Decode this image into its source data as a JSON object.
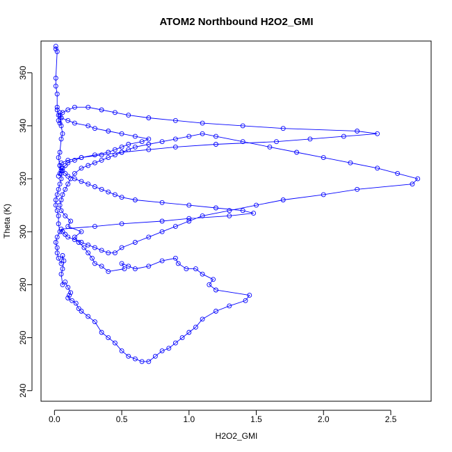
{
  "chart_data": {
    "type": "line",
    "title": "ATOM2 Northbound H2O2_GMI",
    "xlabel": "H2O2_GMI",
    "ylabel": "Theta (K)",
    "xlim": [
      -0.1,
      2.8
    ],
    "ylim": [
      236,
      372
    ],
    "xticks": [
      {
        "value": 0.0,
        "label": "0.0"
      },
      {
        "value": 0.5,
        "label": "0.5"
      },
      {
        "value": 1.0,
        "label": "1.0"
      },
      {
        "value": 1.5,
        "label": "1.5"
      },
      {
        "value": 2.0,
        "label": "2.0"
      },
      {
        "value": 2.5,
        "label": "2.5"
      }
    ],
    "yticks": [
      {
        "value": 240,
        "label": "240"
      },
      {
        "value": 260,
        "label": "260"
      },
      {
        "value": 280,
        "label": "280"
      },
      {
        "value": 300,
        "label": "300"
      },
      {
        "value": 320,
        "label": "320"
      },
      {
        "value": 340,
        "label": "340"
      },
      {
        "value": 360,
        "label": "360"
      }
    ],
    "grid": false,
    "legend": "none",
    "series": [
      {
        "color": "#0000ff",
        "marker": "open-circle",
        "x": [
          0.01,
          0.01,
          0.02,
          0.01,
          0.01,
          0.02,
          0.02,
          0.02,
          0.03,
          0.03,
          0.04,
          0.05,
          0.04,
          0.05,
          0.06,
          0.05,
          0.04,
          0.03,
          0.04,
          0.05,
          0.05,
          0.04,
          0.03,
          0.02,
          0.01,
          0.01,
          0.02,
          0.03,
          0.03,
          0.04,
          0.02,
          0.01,
          0.02,
          0.02,
          0.03,
          0.05,
          0.06,
          0.07,
          0.06,
          0.05,
          0.06,
          0.08,
          0.1,
          0.12,
          0.11,
          0.1,
          0.13,
          0.16,
          0.18,
          0.2,
          0.25,
          0.3,
          0.35,
          0.4,
          0.45,
          0.5,
          0.55,
          0.6,
          0.65,
          0.7,
          0.75,
          0.8,
          0.85,
          0.9,
          0.95,
          1.0,
          1.05,
          1.1,
          1.2,
          1.3,
          1.42,
          1.45,
          1.2,
          1.15,
          1.18,
          1.1,
          1.05,
          0.98,
          0.92,
          0.9,
          0.8,
          0.7,
          0.6,
          0.55,
          0.5,
          0.52,
          0.4,
          0.35,
          0.3,
          0.28,
          0.25,
          0.22,
          0.18,
          0.15,
          0.2,
          0.1,
          0.12,
          0.08,
          0.05,
          0.04,
          0.05,
          0.06,
          0.08,
          0.1,
          0.12,
          0.15,
          0.2,
          0.25,
          0.3,
          0.35,
          0.4,
          0.45,
          0.5,
          0.55,
          0.6,
          0.7,
          0.8,
          0.9,
          1.0,
          1.1,
          1.2,
          1.4,
          1.6,
          1.8,
          2.0,
          2.2,
          2.4,
          2.55,
          2.7,
          2.66,
          2.25,
          2.0,
          1.7,
          1.5,
          1.3,
          1.1,
          1.0,
          0.9,
          0.8,
          0.7,
          0.6,
          0.5,
          0.45,
          0.4,
          0.35,
          0.3,
          0.25,
          0.2,
          0.15,
          0.1,
          0.08,
          0.06,
          0.05,
          0.3,
          0.5,
          0.8,
          1.0,
          1.3,
          1.48,
          1.4,
          1.2,
          1.0,
          0.8,
          0.6,
          0.5,
          0.45,
          0.4,
          0.35,
          0.3,
          0.25,
          0.2,
          0.15,
          0.1,
          0.08,
          0.06,
          0.05,
          0.04,
          0.05,
          0.1,
          0.2,
          0.35,
          0.5,
          0.7,
          0.9,
          1.2,
          1.65,
          1.9,
          2.15,
          2.4,
          2.25,
          1.7,
          1.4,
          1.1,
          0.9,
          0.7,
          0.55,
          0.45,
          0.35,
          0.25,
          0.15,
          0.1,
          0.06,
          0.04,
          0.05,
          0.1,
          0.15,
          0.25,
          0.3,
          0.4,
          0.5,
          0.6,
          0.7,
          0.65,
          0.55,
          0.5,
          0.45,
          0.4,
          0.3,
          0.2,
          0.15,
          0.1,
          0.08,
          0.06,
          0.05,
          0.04,
          0.03
        ],
        "y": [
          369,
          370,
          368,
          358,
          355,
          352,
          347,
          346,
          344,
          342,
          341,
          343,
          345,
          340,
          337,
          335,
          330,
          328,
          325,
          322,
          320,
          318,
          316,
          314,
          312,
          310,
          308,
          306,
          303,
          300,
          298,
          296,
          294,
          292,
          290,
          288,
          291,
          289,
          286,
          284,
          280,
          281,
          279,
          277,
          276,
          275,
          274,
          273,
          271,
          270,
          268,
          266,
          262,
          260,
          258,
          255,
          253,
          252,
          251,
          251,
          253,
          255,
          256,
          258,
          260,
          262,
          264,
          267,
          270,
          272,
          274,
          276,
          278,
          280,
          282,
          284,
          286,
          286,
          288,
          290,
          289,
          287,
          286,
          287,
          288,
          286,
          285,
          287,
          288,
          290,
          292,
          294,
          296,
          298,
          300,
          302,
          304,
          306,
          308,
          310,
          312,
          314,
          316,
          318,
          320,
          322,
          324,
          325,
          326,
          327,
          328,
          329,
          330,
          331,
          332,
          333,
          334,
          335,
          336,
          337,
          336,
          334,
          332,
          330,
          328,
          326,
          324,
          322,
          320,
          318,
          316,
          314,
          312,
          310,
          308,
          306,
          304,
          302,
          300,
          298,
          296,
          294,
          292,
          292,
          293,
          294,
          295,
          296,
          297,
          298,
          299,
          300,
          301,
          302,
          303,
          304,
          305,
          306,
          307,
          308,
          309,
          310,
          311,
          312,
          313,
          314,
          315,
          316,
          317,
          318,
          319,
          320,
          321,
          322,
          323,
          324,
          325,
          326,
          327,
          328,
          329,
          330,
          331,
          332,
          333,
          334,
          335,
          336,
          337,
          338,
          339,
          340,
          341,
          342,
          343,
          344,
          345,
          346,
          347,
          347,
          346,
          345,
          344,
          343,
          342,
          341,
          340,
          339,
          338,
          337,
          336,
          335,
          334,
          333,
          332,
          331,
          330,
          329,
          328,
          327,
          326,
          325,
          324,
          323,
          322,
          321
        ]
      }
    ]
  }
}
